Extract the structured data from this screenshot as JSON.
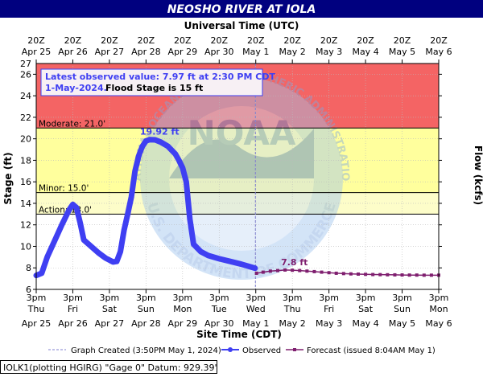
{
  "colors": {
    "title_bg": "#00007f",
    "major_flood": "#f46464",
    "moderate_flood": "#fbb177",
    "minor_flood": "#ffff9d",
    "action": "#fdfdc9",
    "observed": "#3f3ff2",
    "forecast": "#7f1f6f",
    "peak_label": "#3f3ff2",
    "forecast_label": "#7f1f6f",
    "created_line": "#7f7fcf",
    "watermark": "#7fa7df"
  },
  "footer": {
    "left_text": "IOLK1(plotting HGIRG) \"Gage 0\" Datum: 929.39'"
  },
  "watermark": {
    "top_text": "NATIONAL OCEANIC AND ATMOSPHERIC ADMINISTRATION",
    "center_text": "NOAA",
    "bottom_text": "U.S. DEPARTMENT OF COMMERCE"
  },
  "chart_data": {
    "type": "line",
    "title": "NEOSHO RIVER AT IOLA",
    "top_axis_title": "Universal Time (UTC)",
    "xlabel": "Site Time (CDT)",
    "ylabel": "Stage (ft)",
    "y2label": "Flow (kcfs)",
    "ylim": [
      6,
      27
    ],
    "y_ticks": [
      6,
      8,
      10,
      12,
      14,
      16,
      18,
      20,
      22,
      24,
      26
    ],
    "y_tick_labels": [
      "6",
      "8",
      "10",
      "12",
      "14",
      "16",
      "18",
      "20",
      "22",
      "24",
      "26"
    ],
    "y_top_label": "27",
    "x_range_days": [
      0,
      11
    ],
    "x_ticks_bottom": [
      {
        "time": "3pm",
        "day": "Thu",
        "date": "Apr 25"
      },
      {
        "time": "3pm",
        "day": "Fri",
        "date": "Apr 26"
      },
      {
        "time": "3pm",
        "day": "Sat",
        "date": "Apr 27"
      },
      {
        "time": "3pm",
        "day": "Sun",
        "date": "Apr 28"
      },
      {
        "time": "3pm",
        "day": "Mon",
        "date": "Apr 29"
      },
      {
        "time": "3pm",
        "day": "Tue",
        "date": "Apr 30"
      },
      {
        "time": "3pm",
        "day": "Wed",
        "date": "May 1"
      },
      {
        "time": "3pm",
        "day": "Thu",
        "date": "May 2"
      },
      {
        "time": "3pm",
        "day": "Fri",
        "date": "May 3"
      },
      {
        "time": "3pm",
        "day": "Sat",
        "date": "May 4"
      },
      {
        "time": "3pm",
        "day": "Sun",
        "date": "May 5"
      },
      {
        "time": "3pm",
        "day": "Mon",
        "date": "May 6"
      }
    ],
    "x_ticks_top": [
      {
        "time": "20Z",
        "date": "Apr 25"
      },
      {
        "time": "20Z",
        "date": "Apr 26"
      },
      {
        "time": "20Z",
        "date": "Apr 27"
      },
      {
        "time": "20Z",
        "date": "Apr 28"
      },
      {
        "time": "20Z",
        "date": "Apr 29"
      },
      {
        "time": "20Z",
        "date": "Apr 30"
      },
      {
        "time": "20Z",
        "date": "May 1"
      },
      {
        "time": "20Z",
        "date": "May 2"
      },
      {
        "time": "20Z",
        "date": "May 3"
      },
      {
        "time": "20Z",
        "date": "May 4"
      },
      {
        "time": "20Z",
        "date": "May 5"
      },
      {
        "time": "20Z",
        "date": "May 6"
      }
    ],
    "flood_categories": [
      {
        "name": "Action",
        "label": "Action: 13.0'",
        "from": 13,
        "to": 15,
        "color_key": "action"
      },
      {
        "name": "Minor",
        "label": "Minor: 15.0'",
        "from": 15,
        "to": 21,
        "color_key": "minor_flood"
      },
      {
        "name": "Moderate",
        "label": "Moderate: 21.0'",
        "from": 21,
        "to": 27,
        "color_key": "moderate_flood"
      }
    ],
    "info_box": {
      "line1": "Latest observed value: 7.97 ft at 2:30 PM CDT",
      "line2_date": "1-May-2024.",
      "line2_flood": "Flood Stage is 15 ft"
    },
    "peak_label": "19.92 ft",
    "peak_point": [
      3.1,
      19.92
    ],
    "forecast_label": "7.8 ft",
    "forecast_label_point": [
      6.8,
      7.8
    ],
    "graph_created_day": 5.99,
    "legend": {
      "created": "Graph Created (3:50PM May 1, 2024)",
      "observed": "Observed",
      "forecast": "Forecast (issued 8:04AM May 1)"
    },
    "series": [
      {
        "name": "Observed",
        "key": "observed",
        "points": [
          [
            0.0,
            7.3
          ],
          [
            0.15,
            7.5
          ],
          [
            0.3,
            9.0
          ],
          [
            0.5,
            10.5
          ],
          [
            0.7,
            12.0
          ],
          [
            0.9,
            13.4
          ],
          [
            1.0,
            13.9
          ],
          [
            1.1,
            13.6
          ],
          [
            1.2,
            12.2
          ],
          [
            1.3,
            10.6
          ],
          [
            1.5,
            10.0
          ],
          [
            1.7,
            9.4
          ],
          [
            1.9,
            8.9
          ],
          [
            2.1,
            8.55
          ],
          [
            2.2,
            8.6
          ],
          [
            2.3,
            9.5
          ],
          [
            2.4,
            11.5
          ],
          [
            2.5,
            13.0
          ],
          [
            2.6,
            14.6
          ],
          [
            2.7,
            17.0
          ],
          [
            2.8,
            18.4
          ],
          [
            2.9,
            19.3
          ],
          [
            3.0,
            19.8
          ],
          [
            3.1,
            19.92
          ],
          [
            3.25,
            19.9
          ],
          [
            3.4,
            19.7
          ],
          [
            3.6,
            19.3
          ],
          [
            3.8,
            18.6
          ],
          [
            3.9,
            18.0
          ],
          [
            4.0,
            17.3
          ],
          [
            4.1,
            16.0
          ],
          [
            4.2,
            12.5
          ],
          [
            4.3,
            10.2
          ],
          [
            4.5,
            9.5
          ],
          [
            4.7,
            9.15
          ],
          [
            5.0,
            8.85
          ],
          [
            5.3,
            8.6
          ],
          [
            5.6,
            8.35
          ],
          [
            5.98,
            7.97
          ]
        ]
      },
      {
        "name": "Forecast",
        "key": "forecast",
        "points": [
          [
            6.02,
            7.5
          ],
          [
            6.2,
            7.6
          ],
          [
            6.4,
            7.7
          ],
          [
            6.6,
            7.75
          ],
          [
            6.8,
            7.8
          ],
          [
            7.0,
            7.78
          ],
          [
            7.2,
            7.75
          ],
          [
            7.4,
            7.7
          ],
          [
            7.6,
            7.65
          ],
          [
            7.8,
            7.6
          ],
          [
            8.0,
            7.55
          ],
          [
            8.2,
            7.5
          ],
          [
            8.4,
            7.47
          ],
          [
            8.6,
            7.44
          ],
          [
            8.8,
            7.42
          ],
          [
            9.0,
            7.4
          ],
          [
            9.2,
            7.38
          ],
          [
            9.4,
            7.37
          ],
          [
            9.6,
            7.36
          ],
          [
            9.8,
            7.35
          ],
          [
            10.0,
            7.34
          ],
          [
            10.2,
            7.33
          ],
          [
            10.4,
            7.33
          ],
          [
            10.6,
            7.32
          ],
          [
            10.8,
            7.32
          ],
          [
            11.0,
            7.32
          ]
        ]
      }
    ]
  }
}
